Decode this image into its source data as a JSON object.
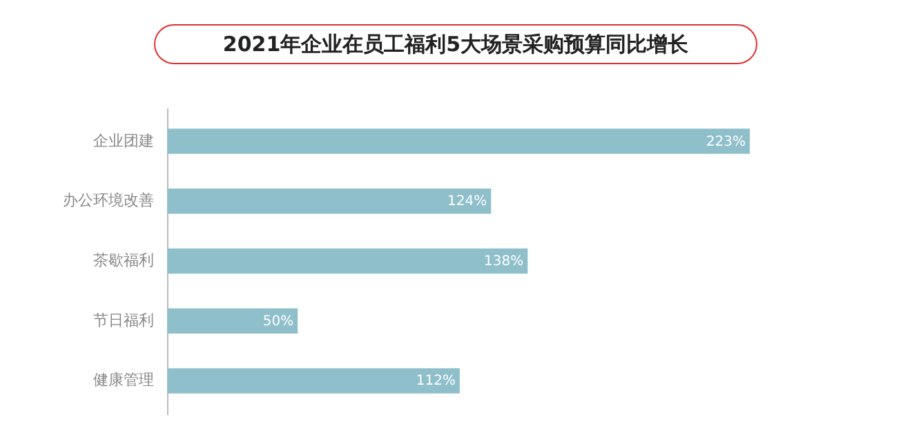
{
  "chart_data": {
    "type": "bar",
    "orientation": "horizontal",
    "title": "2021年企业在员工福利5大场景采购预算同比增长",
    "categories": [
      "企业团建",
      "办公环境改善",
      "茶歇福利",
      "节日福利",
      "健康管理"
    ],
    "values": [
      223,
      124,
      138,
      50,
      112
    ],
    "value_labels": [
      "223%",
      "124%",
      "138%",
      "50%",
      "112%"
    ],
    "color": "#8fbfca"
  }
}
